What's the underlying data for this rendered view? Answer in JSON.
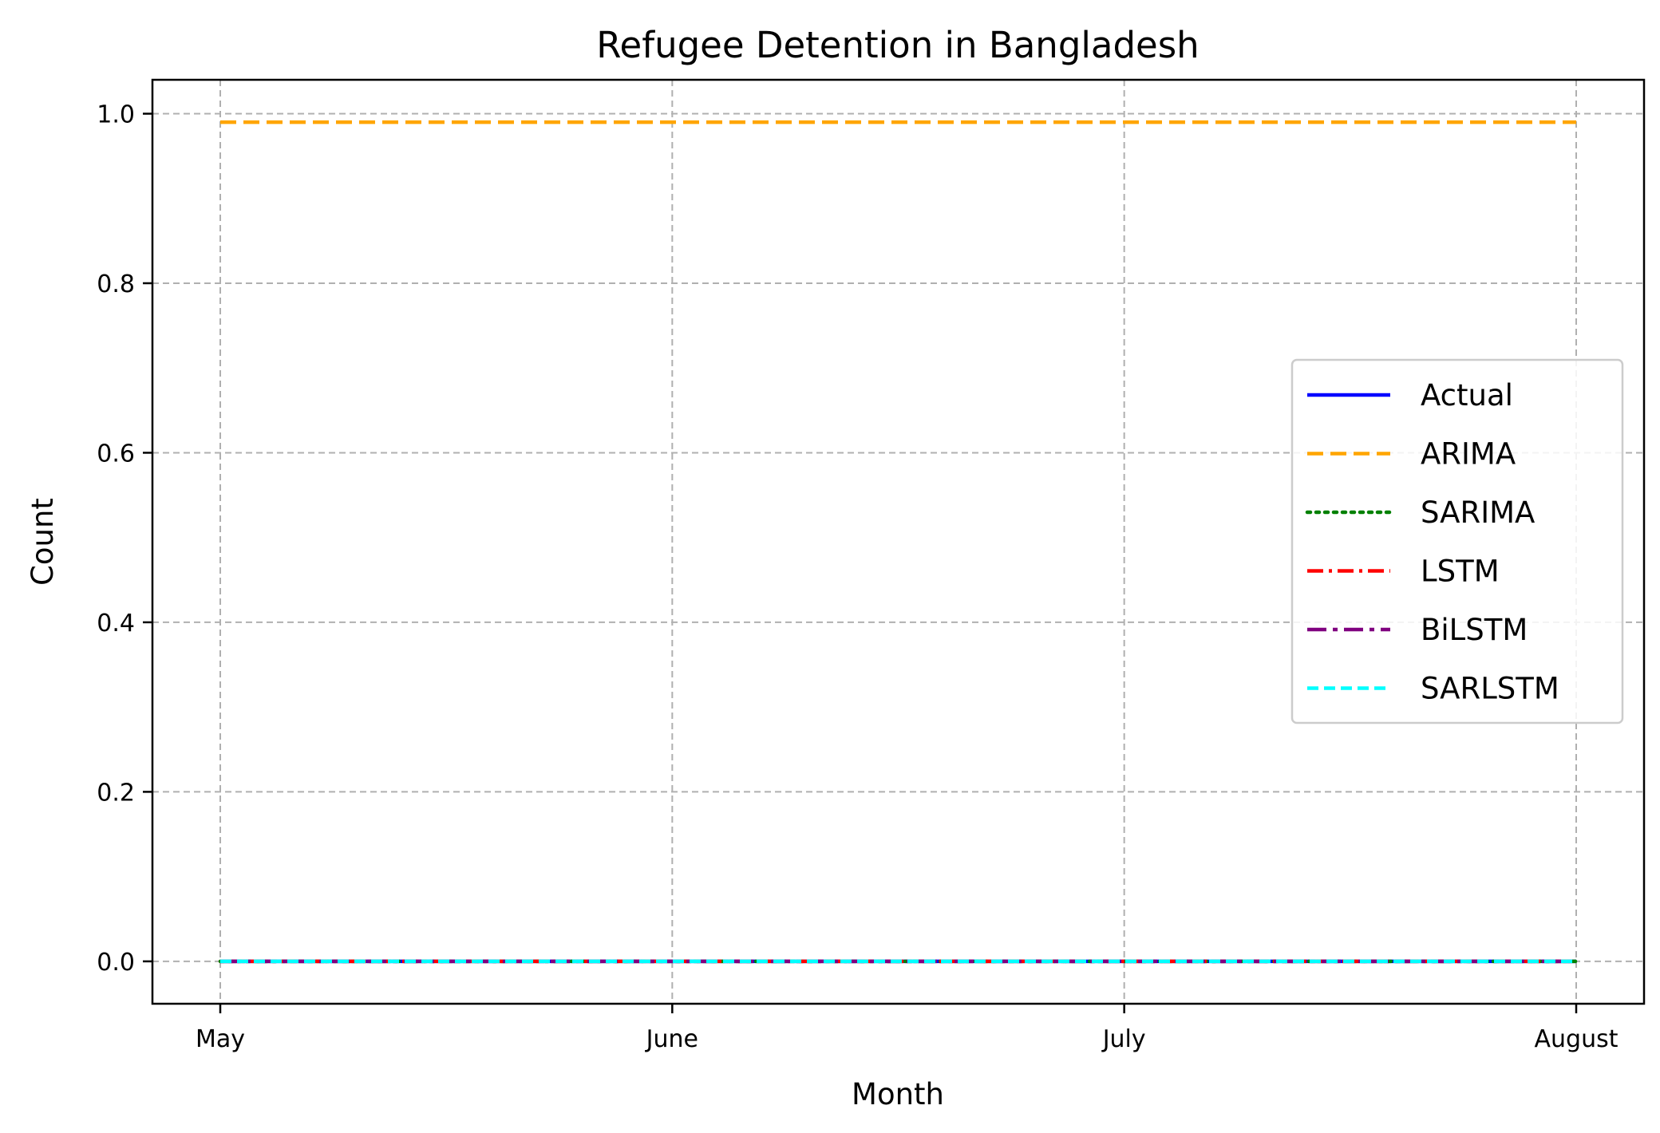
{
  "chart_data": {
    "type": "line",
    "title": "Refugee Detention in Bangladesh",
    "xlabel": "Month",
    "ylabel": "Count",
    "categories": [
      "May",
      "June",
      "July",
      "August"
    ],
    "ylim": [
      -0.05,
      1.04
    ],
    "yticks": [
      "0.0",
      "0.2",
      "0.4",
      "0.6",
      "0.8",
      "1.0"
    ],
    "grid": true,
    "legend_position": "center-right",
    "series": [
      {
        "name": "Actual",
        "values": [
          0,
          0,
          0,
          0
        ],
        "color": "#0000ff",
        "style": "solid"
      },
      {
        "name": "ARIMA",
        "values": [
          0.99,
          0.99,
          0.99,
          0.99
        ],
        "color": "#ffa500",
        "style": "dashed"
      },
      {
        "name": "SARIMA",
        "values": [
          0,
          0,
          0,
          0
        ],
        "color": "#008000",
        "style": "dotted"
      },
      {
        "name": "LSTM",
        "values": [
          0,
          0,
          0,
          0
        ],
        "color": "#ff0000",
        "style": "dashdot"
      },
      {
        "name": "BiLSTM",
        "values": [
          0,
          0,
          0,
          0
        ],
        "color": "#800080",
        "style": "dashdot-long"
      },
      {
        "name": "SARLSTM",
        "values": [
          0,
          0,
          0,
          0
        ],
        "color": "#00ffff",
        "style": "dashed-short"
      }
    ]
  }
}
